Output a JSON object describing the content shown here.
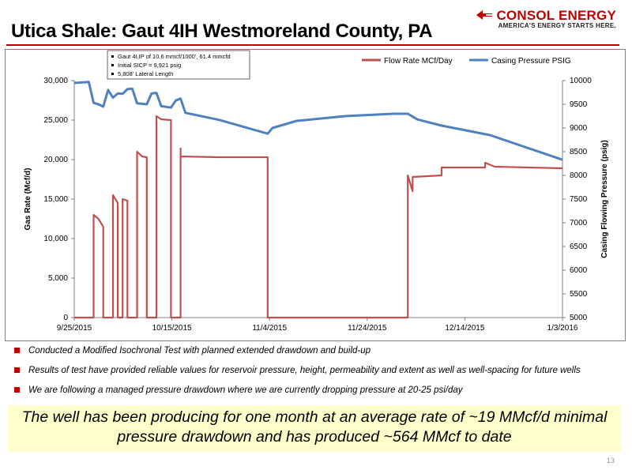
{
  "slide": {
    "title": "Utica Shale: Gaut 4IH Westmoreland County, PA",
    "logo_name": "CONSOL ENERGY",
    "logo_tagline": "AMERICA'S ENERGY STARTS HERE.",
    "page_number": "13",
    "bullets": [
      "Conducted a Modified Isochronal Test with planned extended drawdown and build-up",
      "Results of test have provided reliable values for reservoir pressure, height, permeability and extent as well as well-spacing for future wells",
      "We are following a managed pressure drawdown where we are currently dropping pressure at 20-25 psi/day"
    ],
    "callout_line1": "The well has been producing for one month at an average rate of ~19 MMcf/d minimal",
    "callout_line2": "pressure drawdown and has produced ~564 MMcf to date"
  },
  "colors": {
    "brand": "#c00000",
    "flow": "#c0504d",
    "pressure": "#4f81bd",
    "callout_bg": "#ffffcc"
  },
  "chart_data": {
    "type": "line",
    "xlabel": "",
    "ylabel": "Gas Rate (Mcf/d)",
    "y2label": "Casing Flowing Pressure (psig)",
    "x_ticks": [
      "9/25/2015",
      "10/15/2015",
      "11/4/2015",
      "11/24/2015",
      "12/14/2015",
      "1/3/2016"
    ],
    "x_range": [
      "2015-09-25",
      "2016-01-04"
    ],
    "ylim": [
      0,
      30000
    ],
    "y_ticks": [
      "0",
      "5,000",
      "10,000",
      "15,000",
      "20,000",
      "25,000",
      "30,000"
    ],
    "y2lim": [
      5000,
      10000
    ],
    "y2_ticks": [
      "5000",
      "5500",
      "6000",
      "6500",
      "7000",
      "7500",
      "8000",
      "8500",
      "9000",
      "9500",
      "10000"
    ],
    "legend_position": "top-right",
    "annotation": [
      "Gaut 4I,IP of 10.6 mmcf/1000', 61.4 mmcfd",
      "Initial SICP = 9,921 psig",
      "5,808' Lateral Length"
    ],
    "series": [
      {
        "name": "Flow Rate MCf/Day",
        "axis": "left",
        "points": [
          [
            "2015-09-25",
            0
          ],
          [
            "2015-09-29",
            0
          ],
          [
            "2015-09-29",
            13000
          ],
          [
            "2015-09-30",
            12500
          ],
          [
            "2015-10-01",
            11500
          ],
          [
            "2015-10-01",
            0
          ],
          [
            "2015-10-03",
            0
          ],
          [
            "2015-10-03",
            15500
          ],
          [
            "2015-10-04",
            14500
          ],
          [
            "2015-10-04",
            0
          ],
          [
            "2015-10-05",
            0
          ],
          [
            "2015-10-05",
            15000
          ],
          [
            "2015-10-06",
            14800
          ],
          [
            "2015-10-06",
            0
          ],
          [
            "2015-10-08",
            0
          ],
          [
            "2015-10-08",
            21000
          ],
          [
            "2015-10-09",
            20400
          ],
          [
            "2015-10-10",
            20300
          ],
          [
            "2015-10-10",
            0
          ],
          [
            "2015-10-12",
            0
          ],
          [
            "2015-10-12",
            25500
          ],
          [
            "2015-10-13",
            25100
          ],
          [
            "2015-10-15",
            25000
          ],
          [
            "2015-10-15",
            0
          ],
          [
            "2015-10-17",
            0
          ],
          [
            "2015-10-17",
            21400
          ],
          [
            "2015-10-17",
            20400
          ],
          [
            "2015-10-25",
            20300
          ],
          [
            "2015-11-04",
            20300
          ],
          [
            "2015-11-04",
            0
          ],
          [
            "2015-12-03",
            0
          ],
          [
            "2015-12-03",
            18000
          ],
          [
            "2015-12-04",
            16000
          ],
          [
            "2015-12-04",
            17800
          ],
          [
            "2015-12-10",
            18000
          ],
          [
            "2015-12-10",
            19000
          ],
          [
            "2015-12-19",
            19000
          ],
          [
            "2015-12-19",
            19600
          ],
          [
            "2015-12-21",
            19100
          ],
          [
            "2016-01-04",
            18900
          ]
        ]
      },
      {
        "name": "Casing Pressure PSIG",
        "axis": "right",
        "points": [
          [
            "2015-09-25",
            9950
          ],
          [
            "2015-09-28",
            9970
          ],
          [
            "2015-09-29",
            9530
          ],
          [
            "2015-09-30",
            9500
          ],
          [
            "2015-10-01",
            9450
          ],
          [
            "2015-10-02",
            9800
          ],
          [
            "2015-10-03",
            9640
          ],
          [
            "2015-10-04",
            9730
          ],
          [
            "2015-10-05",
            9720
          ],
          [
            "2015-10-06",
            9820
          ],
          [
            "2015-10-07",
            9830
          ],
          [
            "2015-10-08",
            9520
          ],
          [
            "2015-10-10",
            9500
          ],
          [
            "2015-10-11",
            9730
          ],
          [
            "2015-10-12",
            9740
          ],
          [
            "2015-10-13",
            9460
          ],
          [
            "2015-10-15",
            9430
          ],
          [
            "2015-10-16",
            9580
          ],
          [
            "2015-10-17",
            9620
          ],
          [
            "2015-10-18",
            9320
          ],
          [
            "2015-10-25",
            9170
          ],
          [
            "2015-11-04",
            8880
          ],
          [
            "2015-11-05",
            9000
          ],
          [
            "2015-11-10",
            9150
          ],
          [
            "2015-11-20",
            9250
          ],
          [
            "2015-11-30",
            9300
          ],
          [
            "2015-12-03",
            9300
          ],
          [
            "2015-12-05",
            9180
          ],
          [
            "2015-12-10",
            9050
          ],
          [
            "2015-12-20",
            8850
          ],
          [
            "2016-01-04",
            8330
          ]
        ]
      }
    ]
  }
}
